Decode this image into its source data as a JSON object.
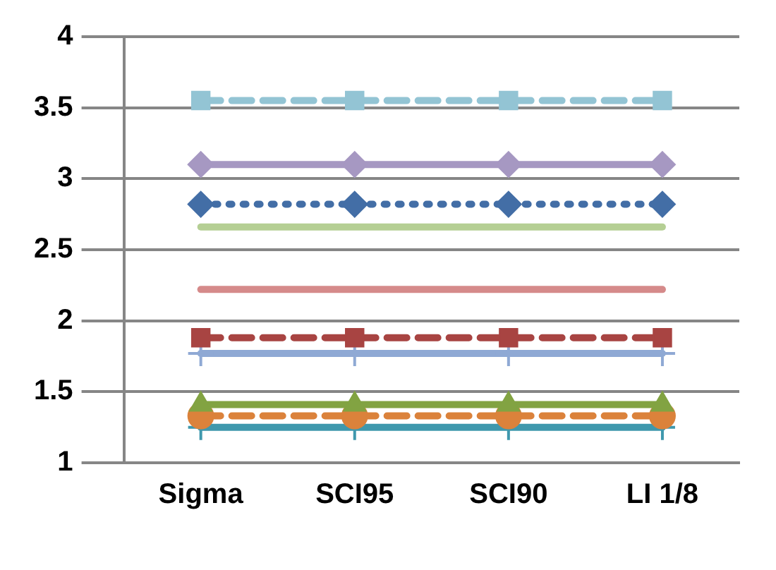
{
  "chart_data": {
    "type": "line",
    "categories": [
      "Sigma",
      "SCI95",
      "SCI90",
      "LI 1/8"
    ],
    "ylim": [
      1,
      4
    ],
    "yticks": [
      1,
      1.5,
      2,
      2.5,
      3,
      3.5,
      4
    ],
    "grid": "y",
    "legend": false,
    "series": [
      {
        "color": "#93c4d4",
        "values": [
          3.55,
          3.55,
          3.55,
          3.55
        ],
        "marker": "square",
        "line_style": "dashed"
      },
      {
        "color": "#a698c2",
        "values": [
          3.1,
          3.1,
          3.1,
          3.1
        ],
        "marker": "diamond",
        "line_style": "solid"
      },
      {
        "color": "#436ea6",
        "values": [
          2.82,
          2.82,
          2.82,
          2.82
        ],
        "marker": "diamond",
        "line_style": "dotted"
      },
      {
        "color": "#b5cf94",
        "values": [
          2.66,
          2.66,
          2.66,
          2.66
        ],
        "marker": "none",
        "line_style": "solid"
      },
      {
        "color": "#d58a8a",
        "values": [
          2.22,
          2.22,
          2.22,
          2.22
        ],
        "marker": "none",
        "line_style": "solid"
      },
      {
        "color": "#a84442",
        "values": [
          1.88,
          1.88,
          1.88,
          1.88
        ],
        "marker": "square",
        "line_style": "dashed"
      },
      {
        "color": "#8fa9d4",
        "values": [
          1.77,
          1.77,
          1.77,
          1.77
        ],
        "marker": "cross",
        "line_style": "solid"
      },
      {
        "color": "#82a342",
        "values": [
          1.41,
          1.41,
          1.41,
          1.41
        ],
        "marker": "triangle",
        "line_style": "solid"
      },
      {
        "color": "#db823b",
        "values": [
          1.33,
          1.33,
          1.33,
          1.33
        ],
        "marker": "circle",
        "line_style": "dashed"
      },
      {
        "color": "#3f98ad",
        "values": [
          1.25,
          1.25,
          1.25,
          1.25
        ],
        "marker": "cross",
        "line_style": "solid"
      }
    ]
  }
}
